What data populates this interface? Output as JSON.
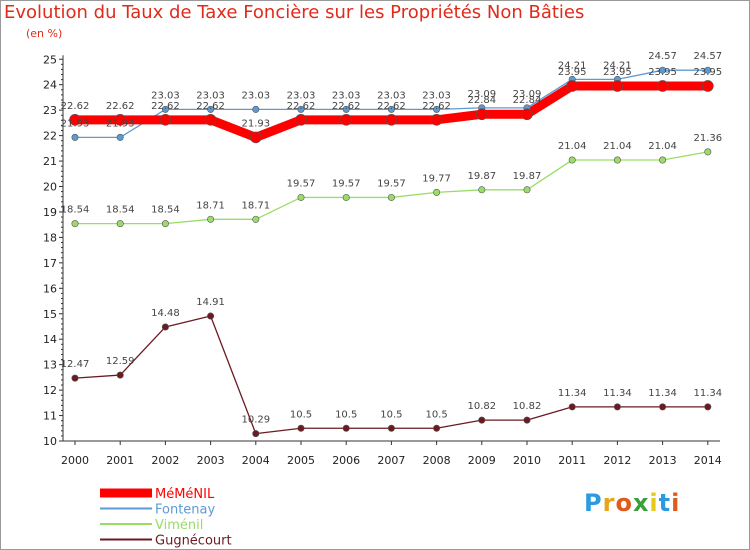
{
  "chart_data": {
    "type": "line",
    "title": "Evolution du Taux de Taxe Foncière sur les Propriétés Non Bâties",
    "ylabel": "(en %)",
    "xlabel": "",
    "ylim": [
      10,
      25
    ],
    "yticks": [
      "10",
      "11",
      "12",
      "13",
      "14",
      "15",
      "16",
      "17",
      "18",
      "19",
      "20",
      "21",
      "22",
      "23",
      "24",
      "25"
    ],
    "categories": [
      "2000",
      "2001",
      "2002",
      "2003",
      "2004",
      "2005",
      "2006",
      "2007",
      "2008",
      "2009",
      "2010",
      "2011",
      "2012",
      "2013",
      "2014"
    ],
    "series": [
      {
        "name": "Fontenay",
        "color": "#5b9bd5",
        "values": [
          21.93,
          21.93,
          23.03,
          23.03,
          23.03,
          23.03,
          23.03,
          23.03,
          23.03,
          23.09,
          23.09,
          24.21,
          24.21,
          24.57,
          24.57
        ],
        "labels": [
          "21.93",
          "21.93",
          "23.03",
          "23.03",
          "23.03",
          "23.03",
          "23.03",
          "23.03",
          "23.03",
          "23.09",
          "23.09",
          "24.21",
          "24.21",
          "24.57",
          "24.57"
        ]
      },
      {
        "name": "MéMéNIL",
        "color": "#ff0000",
        "values": [
          22.62,
          22.62,
          22.62,
          22.62,
          21.93,
          22.62,
          22.62,
          22.62,
          22.62,
          22.84,
          22.84,
          23.95,
          23.95,
          23.95,
          23.95
        ],
        "labels": [
          "22.62",
          "22.62",
          "22.62",
          "22.62",
          "21.93",
          "22.62",
          "22.62",
          "22.62",
          "22.62",
          "22.84",
          "22.84",
          "23.95",
          "23.95",
          "23.95",
          "23.95"
        ]
      },
      {
        "name": "Viménil",
        "color": "#99dd66",
        "values": [
          18.54,
          18.54,
          18.54,
          18.71,
          18.71,
          19.57,
          19.57,
          19.57,
          19.77,
          19.87,
          19.87,
          21.04,
          21.04,
          21.04,
          21.36
        ],
        "labels": [
          "18.54",
          "18.54",
          "18.54",
          "18.71",
          "18.71",
          "19.57",
          "19.57",
          "19.57",
          "19.77",
          "19.87",
          "19.87",
          "21.04",
          "21.04",
          "21.04",
          "21.36"
        ]
      },
      {
        "name": "Gugnécourt",
        "color": "#6b1a22",
        "values": [
          12.47,
          12.59,
          14.48,
          14.91,
          10.29,
          10.5,
          10.5,
          10.5,
          10.5,
          10.82,
          10.82,
          11.34,
          11.34,
          11.34,
          11.34
        ],
        "labels": [
          "12.47",
          "12.59",
          "14.48",
          "14.91",
          "10.29",
          "10.5",
          "10.5",
          "10.5",
          "10.5",
          "10.82",
          "10.82",
          "11.34",
          "11.34",
          "11.34",
          "11.34"
        ]
      }
    ],
    "legend": {
      "placement": "bottom-left",
      "order": [
        "MéMéNIL",
        "Fontenay",
        "Viménil",
        "Gugnécourt"
      ]
    },
    "grid": false
  },
  "logo": {
    "letters": [
      "P",
      "r",
      "o",
      "x",
      "i",
      "t",
      "i"
    ],
    "colors": [
      "#2a9be0",
      "#e8a51a",
      "#e05a1a",
      "#3aa03a",
      "#e8c81a",
      "#2a9be0",
      "#e05a1a"
    ]
  }
}
